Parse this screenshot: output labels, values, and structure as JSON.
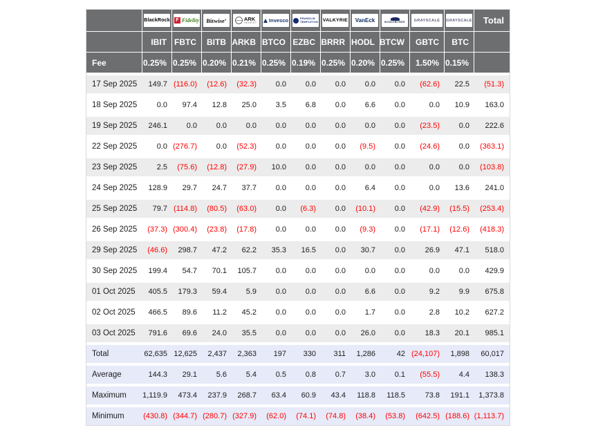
{
  "colors": {
    "header_gray": "#6d6e70",
    "row_shade": "#ececec",
    "summary_bg": "#e7eaf8",
    "negative_red": "#ff0000",
    "header_text": "#ffffff"
  },
  "providers": [
    {
      "id": "blackrock",
      "text": "BlackRock"
    },
    {
      "id": "fidelity",
      "icon_letter": "F",
      "text": "Fidelity"
    },
    {
      "id": "bitwise",
      "text": "Bitwise’"
    },
    {
      "id": "ark-invest",
      "text": "ARK",
      "subtext": "INVEST"
    },
    {
      "id": "invesco",
      "text": "Invesco"
    },
    {
      "id": "franklin-templeton",
      "line1": "FRANKLIN",
      "line2": "TEMPLETON"
    },
    {
      "id": "valkyrie",
      "text": "VALKYRIE"
    },
    {
      "id": "vaneck",
      "text": "VanEck"
    },
    {
      "id": "wisdomtree",
      "text": "WISDOMTREE"
    },
    {
      "id": "grayscale",
      "text": "GRAYSCALE"
    },
    {
      "id": "grayscale-mini",
      "text": "GRAYSCALE"
    }
  ],
  "header": {
    "total_label": "Total",
    "fee_label": "Fee",
    "tickers": [
      "IBIT",
      "FBTC",
      "BITB",
      "ARKB",
      "BTCO",
      "EZBC",
      "BRRR",
      "HODL",
      "BTCW",
      "GBTC",
      "BTC"
    ],
    "fees": [
      "0.25%",
      "0.25%",
      "0.20%",
      "0.21%",
      "0.25%",
      "0.19%",
      "0.25%",
      "0.20%",
      "0.25%",
      "1.50%",
      "0.15%"
    ]
  },
  "rows": [
    {
      "label": "17 Sep 2025",
      "values": [
        "149.7",
        "(116.0)",
        "(12.6)",
        "(32.3)",
        "0.0",
        "0.0",
        "0.0",
        "0.0",
        "0.0",
        "(62.6)",
        "22.5"
      ],
      "total": "(51.3)"
    },
    {
      "label": "18 Sep 2025",
      "values": [
        "0.0",
        "97.4",
        "12.8",
        "25.0",
        "3.5",
        "6.8",
        "0.0",
        "6.6",
        "0.0",
        "0.0",
        "10.9"
      ],
      "total": "163.0"
    },
    {
      "label": "19 Sep 2025",
      "values": [
        "246.1",
        "0.0",
        "0.0",
        "0.0",
        "0.0",
        "0.0",
        "0.0",
        "0.0",
        "0.0",
        "(23.5)",
        "0.0"
      ],
      "total": "222.6"
    },
    {
      "label": "22 Sep 2025",
      "values": [
        "0.0",
        "(276.7)",
        "0.0",
        "(52.3)",
        "0.0",
        "0.0",
        "0.0",
        "(9.5)",
        "0.0",
        "(24.6)",
        "0.0"
      ],
      "total": "(363.1)"
    },
    {
      "label": "23 Sep 2025",
      "values": [
        "2.5",
        "(75.6)",
        "(12.8)",
        "(27.9)",
        "10.0",
        "0.0",
        "0.0",
        "0.0",
        "0.0",
        "0.0",
        "0.0"
      ],
      "total": "(103.8)"
    },
    {
      "label": "24 Sep 2025",
      "values": [
        "128.9",
        "29.7",
        "24.7",
        "37.7",
        "0.0",
        "0.0",
        "0.0",
        "6.4",
        "0.0",
        "0.0",
        "13.6"
      ],
      "total": "241.0"
    },
    {
      "label": "25 Sep 2025",
      "values": [
        "79.7",
        "(114.8)",
        "(80.5)",
        "(63.0)",
        "0.0",
        "(6.3)",
        "0.0",
        "(10.1)",
        "0.0",
        "(42.9)",
        "(15.5)"
      ],
      "total": "(253.4)"
    },
    {
      "label": "26 Sep 2025",
      "values": [
        "(37.3)",
        "(300.4)",
        "(23.8)",
        "(17.8)",
        "0.0",
        "0.0",
        "0.0",
        "(9.3)",
        "0.0",
        "(17.1)",
        "(12.6)"
      ],
      "total": "(418.3)"
    },
    {
      "label": "29 Sep 2025",
      "values": [
        "(46.6)",
        "298.7",
        "47.2",
        "62.2",
        "35.3",
        "16.5",
        "0.0",
        "30.7",
        "0.0",
        "26.9",
        "47.1"
      ],
      "total": "518.0"
    },
    {
      "label": "30 Sep 2025",
      "values": [
        "199.4",
        "54.7",
        "70.1",
        "105.7",
        "0.0",
        "0.0",
        "0.0",
        "0.0",
        "0.0",
        "0.0",
        "0.0"
      ],
      "total": "429.9"
    },
    {
      "label": "01 Oct 2025",
      "values": [
        "405.5",
        "179.3",
        "59.4",
        "5.9",
        "0.0",
        "0.0",
        "0.0",
        "6.6",
        "0.0",
        "9.2",
        "9.9"
      ],
      "total": "675.8"
    },
    {
      "label": "02 Oct 2025",
      "values": [
        "466.5",
        "89.6",
        "11.2",
        "45.2",
        "0.0",
        "0.0",
        "0.0",
        "1.7",
        "0.0",
        "2.8",
        "10.2"
      ],
      "total": "627.2"
    },
    {
      "label": "03 Oct 2025",
      "values": [
        "791.6",
        "69.6",
        "24.0",
        "35.5",
        "0.0",
        "0.0",
        "0.0",
        "26.0",
        "0.0",
        "18.3",
        "20.1"
      ],
      "total": "985.1"
    }
  ],
  "summary_rows": [
    {
      "label": "Total",
      "values": [
        "62,635",
        "12,625",
        "2,437",
        "2,363",
        "197",
        "330",
        "311",
        "1,286",
        "42",
        "(24,107)",
        "1,898"
      ],
      "total": "60,017"
    },
    {
      "label": "Average",
      "values": [
        "144.3",
        "29.1",
        "5.6",
        "5.4",
        "0.5",
        "0.8",
        "0.7",
        "3.0",
        "0.1",
        "(55.5)",
        "4.4"
      ],
      "total": "138.3"
    },
    {
      "label": "Maximum",
      "values": [
        "1,119.9",
        "473.4",
        "237.9",
        "268.7",
        "63.4",
        "60.9",
        "43.4",
        "118.8",
        "118.5",
        "73.8",
        "191.1"
      ],
      "total": "1,373.8"
    },
    {
      "label": "Minimum",
      "values": [
        "(430.8)",
        "(344.7)",
        "(280.7)",
        "(327.9)",
        "(62.0)",
        "(74.1)",
        "(74.8)",
        "(38.4)",
        "(53.8)",
        "(642.5)",
        "(188.6)"
      ],
      "total": "(1,113.7)"
    }
  ]
}
